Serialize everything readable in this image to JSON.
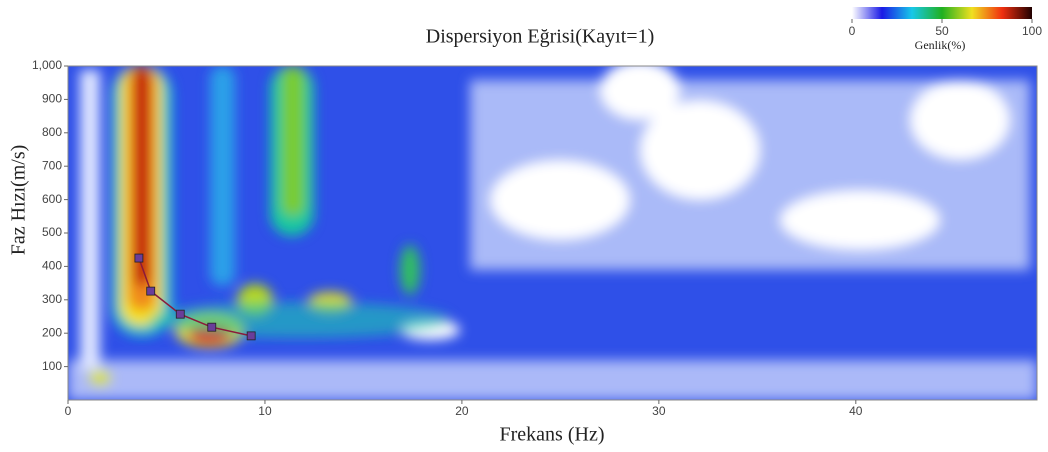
{
  "chart_data": {
    "type": "line",
    "title": "Dispersiyon Eğrisi(Kayıt=1)",
    "x_label": "Frekans (Hz)",
    "y_label": "Faz Hızı(m/s)",
    "series": [
      {
        "color": "#8b1a3a",
        "marker_color": "#6a3d9a",
        "x": [
          3.6,
          4.2,
          5.7,
          7.3,
          9.3
        ],
        "values": [
          425,
          326,
          257,
          218,
          192
        ]
      }
    ],
    "xlim": [
      0,
      49.2
    ],
    "xticks": [
      0,
      10,
      20,
      30,
      40
    ],
    "ylim": [
      0,
      1000
    ],
    "yticks": [
      100,
      200,
      300,
      400,
      500,
      600,
      700,
      800,
      900,
      {
        "value": 1000,
        "label": "1,000"
      }
    ],
    "colorbar": {
      "label": "Genlik(%)",
      "lim": [
        0,
        100
      ],
      "ticks": [
        0,
        50,
        100
      ],
      "colors": [
        "#ffffff",
        "#1a1ae6",
        "#18c8e8",
        "#20b020",
        "#f0e020",
        "#f03010",
        "#200000"
      ]
    }
  }
}
